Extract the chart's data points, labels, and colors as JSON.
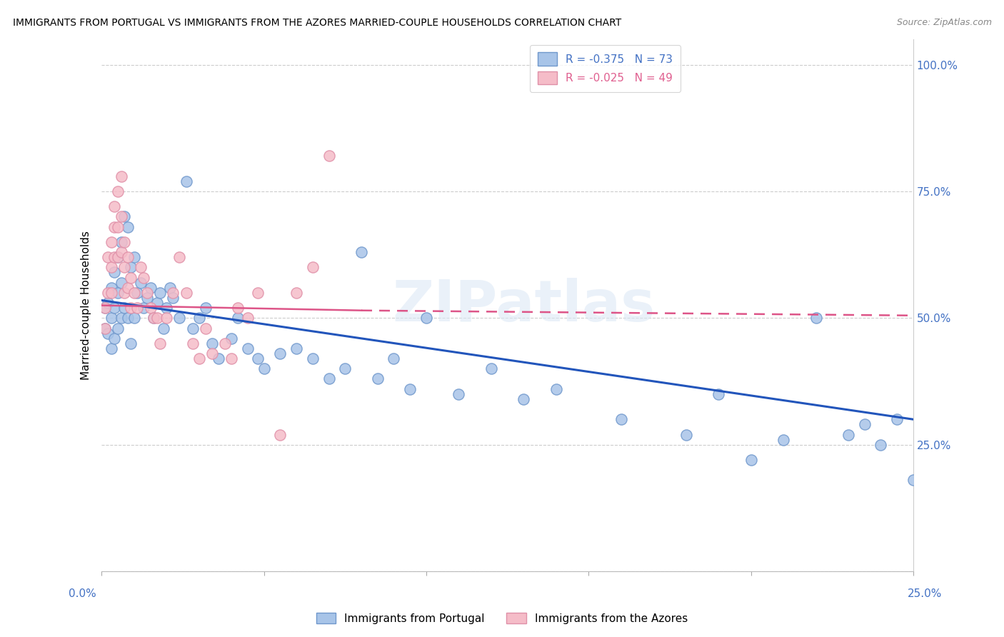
{
  "title": "IMMIGRANTS FROM PORTUGAL VS IMMIGRANTS FROM THE AZORES MARRIED-COUPLE HOUSEHOLDS CORRELATION CHART",
  "source": "Source: ZipAtlas.com",
  "ylabel": "Married-couple Households",
  "xlim": [
    0.0,
    0.25
  ],
  "ylim": [
    0.0,
    1.05
  ],
  "blue_R": -0.375,
  "blue_N": 73,
  "pink_R": -0.025,
  "pink_N": 49,
  "blue_color": "#a8c4e8",
  "blue_edge": "#7098cc",
  "pink_color": "#f5bcc8",
  "pink_edge": "#e090a8",
  "blue_line_color": "#2255bb",
  "pink_line_color": "#dd5588",
  "watermark": "ZIPatlas",
  "legend_label_blue": "Immigrants from Portugal",
  "legend_label_pink": "Immigrants from the Azores",
  "blue_x": [
    0.001,
    0.001,
    0.002,
    0.002,
    0.003,
    0.003,
    0.003,
    0.004,
    0.004,
    0.004,
    0.005,
    0.005,
    0.005,
    0.006,
    0.006,
    0.006,
    0.007,
    0.007,
    0.008,
    0.008,
    0.009,
    0.009,
    0.01,
    0.01,
    0.011,
    0.012,
    0.013,
    0.014,
    0.015,
    0.016,
    0.017,
    0.018,
    0.019,
    0.02,
    0.021,
    0.022,
    0.024,
    0.026,
    0.028,
    0.03,
    0.032,
    0.034,
    0.036,
    0.04,
    0.042,
    0.045,
    0.048,
    0.05,
    0.055,
    0.06,
    0.065,
    0.07,
    0.075,
    0.08,
    0.085,
    0.09,
    0.095,
    0.1,
    0.11,
    0.12,
    0.13,
    0.14,
    0.16,
    0.18,
    0.19,
    0.2,
    0.21,
    0.22,
    0.23,
    0.235,
    0.24,
    0.245,
    0.25
  ],
  "blue_y": [
    0.52,
    0.48,
    0.53,
    0.47,
    0.56,
    0.5,
    0.44,
    0.59,
    0.52,
    0.46,
    0.62,
    0.55,
    0.48,
    0.65,
    0.57,
    0.5,
    0.7,
    0.52,
    0.68,
    0.5,
    0.6,
    0.45,
    0.62,
    0.5,
    0.55,
    0.57,
    0.52,
    0.54,
    0.56,
    0.5,
    0.53,
    0.55,
    0.48,
    0.52,
    0.56,
    0.54,
    0.5,
    0.77,
    0.48,
    0.5,
    0.52,
    0.45,
    0.42,
    0.46,
    0.5,
    0.44,
    0.42,
    0.4,
    0.43,
    0.44,
    0.42,
    0.38,
    0.4,
    0.63,
    0.38,
    0.42,
    0.36,
    0.5,
    0.35,
    0.4,
    0.34,
    0.36,
    0.3,
    0.27,
    0.35,
    0.22,
    0.26,
    0.5,
    0.27,
    0.29,
    0.25,
    0.3,
    0.18
  ],
  "pink_x": [
    0.001,
    0.001,
    0.002,
    0.002,
    0.003,
    0.003,
    0.003,
    0.004,
    0.004,
    0.004,
    0.005,
    0.005,
    0.005,
    0.006,
    0.006,
    0.006,
    0.007,
    0.007,
    0.007,
    0.008,
    0.008,
    0.009,
    0.009,
    0.01,
    0.011,
    0.012,
    0.013,
    0.014,
    0.015,
    0.016,
    0.017,
    0.018,
    0.02,
    0.022,
    0.024,
    0.026,
    0.028,
    0.03,
    0.032,
    0.034,
    0.038,
    0.04,
    0.042,
    0.045,
    0.048,
    0.055,
    0.06,
    0.065,
    0.07
  ],
  "pink_y": [
    0.52,
    0.48,
    0.55,
    0.62,
    0.65,
    0.6,
    0.55,
    0.72,
    0.68,
    0.62,
    0.75,
    0.68,
    0.62,
    0.78,
    0.7,
    0.63,
    0.65,
    0.6,
    0.55,
    0.62,
    0.56,
    0.58,
    0.52,
    0.55,
    0.52,
    0.6,
    0.58,
    0.55,
    0.52,
    0.5,
    0.5,
    0.45,
    0.5,
    0.55,
    0.62,
    0.55,
    0.45,
    0.42,
    0.48,
    0.43,
    0.45,
    0.42,
    0.52,
    0.5,
    0.55,
    0.27,
    0.55,
    0.6,
    0.82
  ],
  "blue_line_x0": 0.0,
  "blue_line_y0": 0.535,
  "blue_line_x1": 0.25,
  "blue_line_y1": 0.3,
  "pink_line_solid_x0": 0.0,
  "pink_line_solid_y0": 0.525,
  "pink_line_solid_x1": 0.08,
  "pink_line_solid_y1": 0.515,
  "pink_line_dash_x0": 0.08,
  "pink_line_dash_y0": 0.515,
  "pink_line_dash_x1": 0.25,
  "pink_line_dash_y1": 0.505
}
